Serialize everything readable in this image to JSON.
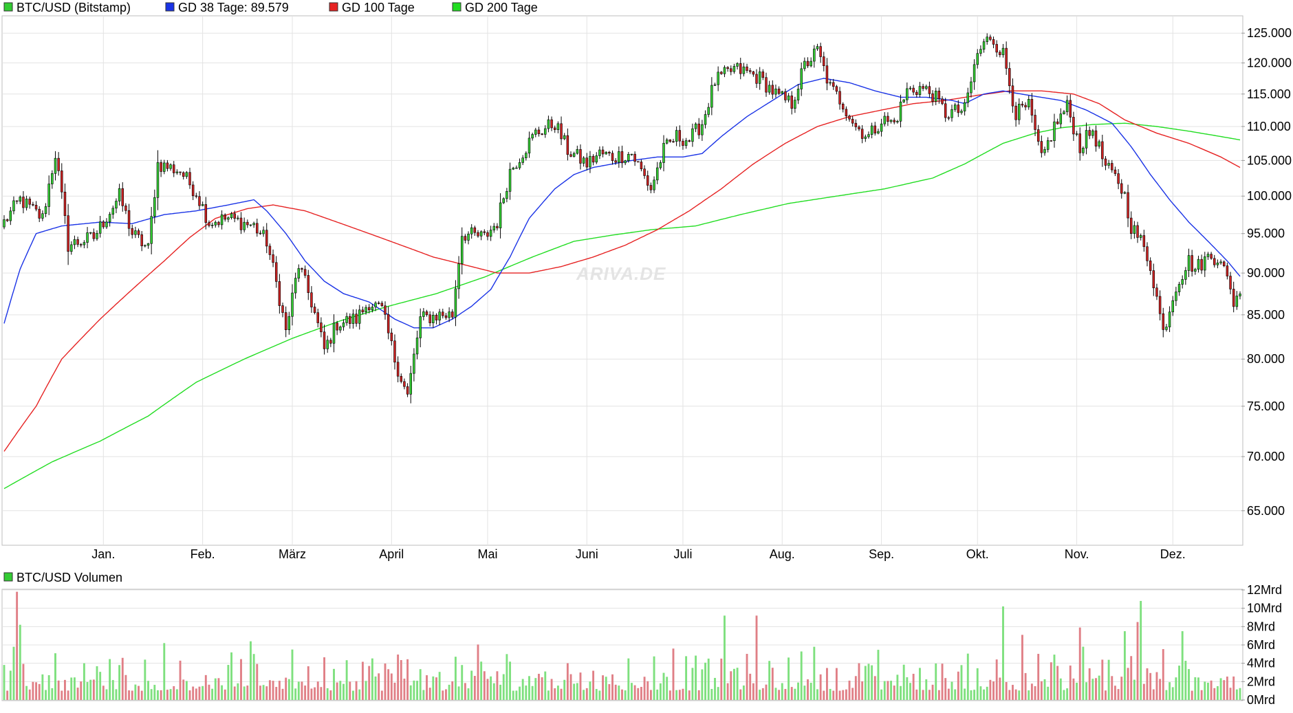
{
  "watermark": "ARIVA.DE",
  "colors": {
    "up": "#33cc33",
    "down": "#cc2222",
    "ma38": "#1a33e6",
    "ma100": "#e62222",
    "ma200": "#22dd22",
    "grid": "#e3e3e3",
    "vol_up": "#7ee07e",
    "vol_down": "#e07f86"
  },
  "legend": [
    {
      "key": "price",
      "label": "BTC/USD (Bitstamp)",
      "color": "#33cc33"
    },
    {
      "key": "ma38",
      "label": "GD 38 Tage: 89.579",
      "color": "#1a33e6"
    },
    {
      "key": "ma100",
      "label": "GD 100 Tage",
      "color": "#e62222"
    },
    {
      "key": "ma200",
      "label": "GD 200 Tage",
      "color": "#22dd22"
    }
  ],
  "volume_legend": {
    "label": "BTC/USD Volumen",
    "color": "#33cc33"
  },
  "chart_data": [
    {
      "type": "candlestick",
      "title": "BTC/USD (Bitstamp)",
      "scale": "log",
      "ylim": [
        62000,
        128000
      ],
      "yticks": [
        {
          "value": 65000,
          "label": "65.000"
        },
        {
          "value": 70000,
          "label": "70.000"
        },
        {
          "value": 75000,
          "label": "75.000"
        },
        {
          "value": 80000,
          "label": "80.000"
        },
        {
          "value": 85000,
          "label": "85.000"
        },
        {
          "value": 90000,
          "label": "90.000"
        },
        {
          "value": 95000,
          "label": "95.000"
        },
        {
          "value": 100000,
          "label": "100.000"
        },
        {
          "value": 105000,
          "label": "105.000"
        },
        {
          "value": 110000,
          "label": "110.000"
        },
        {
          "value": 115000,
          "label": "115.000"
        },
        {
          "value": 120000,
          "label": "120.000"
        },
        {
          "value": 125000,
          "label": "125.000"
        }
      ],
      "xticks": [
        {
          "day": 31,
          "label": "Jan."
        },
        {
          "day": 62,
          "label": "Feb."
        },
        {
          "day": 90,
          "label": "März"
        },
        {
          "day": 121,
          "label": "April"
        },
        {
          "day": 151,
          "label": "Mai"
        },
        {
          "day": 182,
          "label": "Juni"
        },
        {
          "day": 212,
          "label": "Juli"
        },
        {
          "day": 243,
          "label": "Aug."
        },
        {
          "day": 274,
          "label": "Sep."
        },
        {
          "day": 304,
          "label": "Okt."
        },
        {
          "day": 335,
          "label": "Nov."
        },
        {
          "day": 365,
          "label": "Dez."
        }
      ],
      "x_range_days": [
        0,
        386
      ],
      "close_anchors": [
        [
          0,
          96500
        ],
        [
          5,
          99500
        ],
        [
          12,
          97000
        ],
        [
          16,
          106000
        ],
        [
          20,
          93500
        ],
        [
          28,
          94500
        ],
        [
          36,
          100000
        ],
        [
          40,
          95000
        ],
        [
          45,
          93000
        ],
        [
          48,
          104500
        ],
        [
          55,
          103500
        ],
        [
          60,
          100500
        ],
        [
          64,
          96500
        ],
        [
          70,
          97000
        ],
        [
          78,
          96000
        ],
        [
          82,
          94000
        ],
        [
          86,
          87000
        ],
        [
          88,
          83000
        ],
        [
          92,
          91000
        ],
        [
          96,
          86500
        ],
        [
          100,
          81000
        ],
        [
          104,
          84000
        ],
        [
          110,
          84500
        ],
        [
          114,
          86500
        ],
        [
          118,
          85500
        ],
        [
          122,
          80000
        ],
        [
          126,
          76000
        ],
        [
          130,
          84500
        ],
        [
          136,
          85000
        ],
        [
          140,
          85000
        ],
        [
          143,
          95000
        ],
        [
          150,
          94500
        ],
        [
          154,
          96500
        ],
        [
          158,
          103500
        ],
        [
          166,
          109000
        ],
        [
          172,
          110500
        ],
        [
          176,
          106500
        ],
        [
          182,
          104500
        ],
        [
          186,
          106000
        ],
        [
          190,
          105500
        ],
        [
          196,
          106000
        ],
        [
          202,
          101000
        ],
        [
          206,
          106500
        ],
        [
          210,
          108500
        ],
        [
          214,
          108000
        ],
        [
          218,
          110500
        ],
        [
          222,
          117000
        ],
        [
          228,
          119000
        ],
        [
          232,
          118500
        ],
        [
          236,
          117500
        ],
        [
          242,
          114500
        ],
        [
          246,
          113500
        ],
        [
          250,
          119500
        ],
        [
          254,
          122000
        ],
        [
          258,
          116000
        ],
        [
          262,
          113500
        ],
        [
          266,
          110000
        ],
        [
          270,
          108500
        ],
        [
          274,
          111000
        ],
        [
          278,
          110500
        ],
        [
          282,
          115500
        ],
        [
          286,
          116000
        ],
        [
          290,
          115000
        ],
        [
          294,
          112000
        ],
        [
          300,
          112500
        ],
        [
          304,
          121500
        ],
        [
          308,
          124500
        ],
        [
          312,
          121500
        ],
        [
          316,
          112000
        ],
        [
          320,
          113000
        ],
        [
          324,
          105000
        ],
        [
          328,
          110000
        ],
        [
          332,
          113000
        ],
        [
          336,
          107000
        ],
        [
          340,
          109500
        ],
        [
          344,
          104000
        ],
        [
          348,
          102000
        ],
        [
          350,
          100000
        ],
        [
          352,
          96000
        ],
        [
          355,
          94000
        ],
        [
          358,
          91000
        ],
        [
          362,
          83000
        ],
        [
          366,
          88500
        ],
        [
          370,
          91500
        ],
        [
          372,
          90500
        ],
        [
          376,
          92000
        ],
        [
          380,
          92000
        ],
        [
          382,
          89000
        ],
        [
          384,
          86500
        ],
        [
          386,
          88000
        ]
      ],
      "ma38_anchors": [
        [
          0,
          84000
        ],
        [
          5,
          90500
        ],
        [
          10,
          95000
        ],
        [
          18,
          96000
        ],
        [
          30,
          96500
        ],
        [
          40,
          96300
        ],
        [
          50,
          97500
        ],
        [
          60,
          98000
        ],
        [
          70,
          98800
        ],
        [
          78,
          99500
        ],
        [
          82,
          98000
        ],
        [
          88,
          95000
        ],
        [
          94,
          91500
        ],
        [
          100,
          89000
        ],
        [
          106,
          87500
        ],
        [
          114,
          86500
        ],
        [
          122,
          84500
        ],
        [
          128,
          83500
        ],
        [
          134,
          83500
        ],
        [
          140,
          84500
        ],
        [
          146,
          86000
        ],
        [
          152,
          88000
        ],
        [
          158,
          92000
        ],
        [
          164,
          97000
        ],
        [
          172,
          101000
        ],
        [
          178,
          103000
        ],
        [
          184,
          104000
        ],
        [
          190,
          104500
        ],
        [
          196,
          105000
        ],
        [
          204,
          105500
        ],
        [
          212,
          105500
        ],
        [
          218,
          106000
        ],
        [
          224,
          108500
        ],
        [
          232,
          111500
        ],
        [
          240,
          114000
        ],
        [
          248,
          116500
        ],
        [
          256,
          117500
        ],
        [
          264,
          116800
        ],
        [
          272,
          115500
        ],
        [
          280,
          114500
        ],
        [
          288,
          114500
        ],
        [
          296,
          114000
        ],
        [
          300,
          113500
        ],
        [
          306,
          115000
        ],
        [
          312,
          115500
        ],
        [
          320,
          114800
        ],
        [
          330,
          114000
        ],
        [
          338,
          112500
        ],
        [
          346,
          110500
        ],
        [
          352,
          107000
        ],
        [
          358,
          103000
        ],
        [
          364,
          99500
        ],
        [
          370,
          96500
        ],
        [
          376,
          94000
        ],
        [
          382,
          91500
        ],
        [
          386,
          89600
        ]
      ],
      "ma100_anchors": [
        [
          0,
          70500
        ],
        [
          10,
          75000
        ],
        [
          18,
          80000
        ],
        [
          30,
          84500
        ],
        [
          40,
          88000
        ],
        [
          50,
          91500
        ],
        [
          58,
          94500
        ],
        [
          66,
          97000
        ],
        [
          76,
          98300
        ],
        [
          84,
          98800
        ],
        [
          94,
          98000
        ],
        [
          104,
          96500
        ],
        [
          114,
          95000
        ],
        [
          124,
          93500
        ],
        [
          134,
          92000
        ],
        [
          144,
          91000
        ],
        [
          154,
          90000
        ],
        [
          164,
          90000
        ],
        [
          174,
          90800
        ],
        [
          184,
          92000
        ],
        [
          194,
          93500
        ],
        [
          204,
          95500
        ],
        [
          214,
          98000
        ],
        [
          224,
          101000
        ],
        [
          234,
          104500
        ],
        [
          244,
          107500
        ],
        [
          254,
          110000
        ],
        [
          264,
          111500
        ],
        [
          274,
          112500
        ],
        [
          284,
          113500
        ],
        [
          294,
          114000
        ],
        [
          304,
          114800
        ],
        [
          314,
          115500
        ],
        [
          324,
          115500
        ],
        [
          334,
          115000
        ],
        [
          342,
          113500
        ],
        [
          350,
          111000
        ],
        [
          360,
          109000
        ],
        [
          370,
          107500
        ],
        [
          380,
          105500
        ],
        [
          386,
          104000
        ]
      ],
      "ma200_anchors": [
        [
          0,
          67000
        ],
        [
          15,
          69500
        ],
        [
          30,
          71500
        ],
        [
          45,
          74000
        ],
        [
          60,
          77500
        ],
        [
          75,
          80000
        ],
        [
          90,
          82300
        ],
        [
          105,
          84300
        ],
        [
          120,
          86000
        ],
        [
          135,
          87500
        ],
        [
          150,
          89500
        ],
        [
          165,
          92000
        ],
        [
          178,
          94000
        ],
        [
          190,
          94800
        ],
        [
          202,
          95500
        ],
        [
          216,
          96000
        ],
        [
          230,
          97500
        ],
        [
          245,
          99000
        ],
        [
          260,
          100000
        ],
        [
          275,
          101000
        ],
        [
          290,
          102500
        ],
        [
          300,
          104500
        ],
        [
          312,
          107500
        ],
        [
          322,
          109000
        ],
        [
          330,
          109800
        ],
        [
          340,
          110300
        ],
        [
          350,
          110500
        ],
        [
          360,
          110000
        ],
        [
          370,
          109300
        ],
        [
          380,
          108500
        ],
        [
          386,
          108000
        ]
      ]
    },
    {
      "type": "bar",
      "title": "BTC/USD Volumen",
      "ylim": [
        0,
        12
      ],
      "unit": "Mrd",
      "yticks": [
        {
          "value": 0,
          "label": "0Mrd"
        },
        {
          "value": 2,
          "label": "2Mrd"
        },
        {
          "value": 4,
          "label": "4Mrd"
        },
        {
          "value": 6,
          "label": "6Mrd"
        },
        {
          "value": 8,
          "label": "8Mrd"
        },
        {
          "value": 10,
          "label": "10Mrd"
        },
        {
          "value": 12,
          "label": "12Mrd"
        }
      ],
      "typical_range": [
        1,
        5
      ],
      "spikes": [
        {
          "day": 4,
          "value": 11.8
        },
        {
          "day": 5,
          "value": 8.2
        },
        {
          "day": 3,
          "value": 5.8
        },
        {
          "day": 50,
          "value": 6.2
        },
        {
          "day": 90,
          "value": 5.5
        },
        {
          "day": 225,
          "value": 9.2
        },
        {
          "day": 235,
          "value": 9.2
        },
        {
          "day": 253,
          "value": 5.8
        },
        {
          "day": 312,
          "value": 10.2
        },
        {
          "day": 318,
          "value": 7.1
        },
        {
          "day": 336,
          "value": 7.9
        },
        {
          "day": 350,
          "value": 7.5
        },
        {
          "day": 354,
          "value": 8.5
        },
        {
          "day": 355,
          "value": 10.8
        },
        {
          "day": 368,
          "value": 7.5
        }
      ]
    }
  ]
}
